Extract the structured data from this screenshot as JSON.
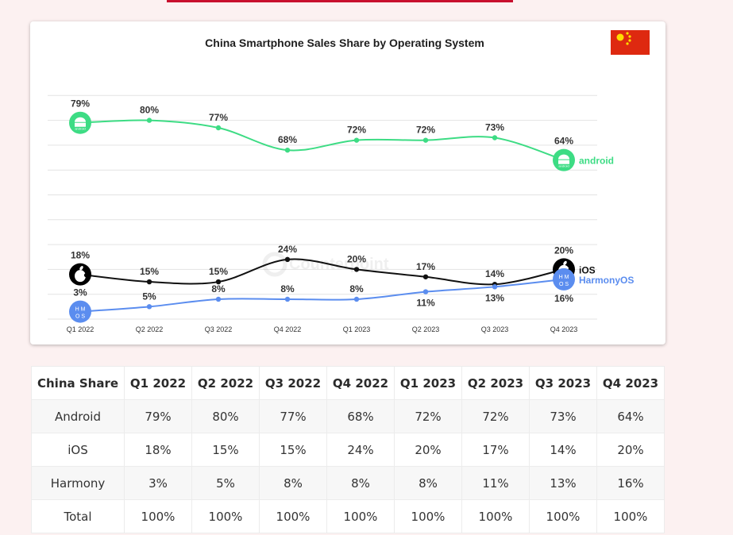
{
  "chart_data": {
    "type": "line",
    "title": "China Smartphone Sales Share by Operating System",
    "categories": [
      "Q1 2022",
      "Q2 2022",
      "Q3 2022",
      "Q4 2022",
      "Q1 2023",
      "Q2 2023",
      "Q3 2023",
      "Q4 2023"
    ],
    "ylim": [
      0,
      100
    ],
    "grid": true,
    "watermark": "Counterpoint",
    "series": [
      {
        "name": "android",
        "color": "#3ddc84",
        "icon": "android-icon",
        "values": [
          79,
          80,
          77,
          68,
          72,
          72,
          73,
          64
        ],
        "labels": [
          "79%",
          "80%",
          "77%",
          "68%",
          "72%",
          "72%",
          "73%",
          "64%"
        ]
      },
      {
        "name": "iOS",
        "color": "#111111",
        "icon": "apple-icon",
        "values": [
          18,
          15,
          15,
          24,
          20,
          17,
          14,
          20
        ],
        "labels": [
          "18%",
          "15%",
          "15%",
          "24%",
          "20%",
          "17%",
          "14%",
          "20%"
        ]
      },
      {
        "name": "HarmonyOS",
        "color": "#5b8def",
        "icon": "hmos-icon",
        "values": [
          3,
          5,
          8,
          8,
          8,
          11,
          13,
          16
        ],
        "labels": [
          "3%",
          "5%",
          "8%",
          "8%",
          "8%",
          "11%",
          "13%",
          "16%"
        ]
      }
    ],
    "flag": "china-flag-icon",
    "icon_text": {
      "android": "android",
      "hmos_line1": "H M",
      "hmos_line2": "O S"
    }
  },
  "table": {
    "headers": [
      "China Share",
      "Q1 2022",
      "Q2 2022",
      "Q3 2022",
      "Q4 2022",
      "Q1 2023",
      "Q2 2023",
      "Q3 2023",
      "Q4 2023"
    ],
    "rows": [
      [
        "Android",
        "79%",
        "80%",
        "77%",
        "68%",
        "72%",
        "72%",
        "73%",
        "64%"
      ],
      [
        "iOS",
        "18%",
        "15%",
        "15%",
        "24%",
        "20%",
        "17%",
        "14%",
        "20%"
      ],
      [
        "Harmony",
        "3%",
        "5%",
        "8%",
        "8%",
        "8%",
        "11%",
        "13%",
        "16%"
      ],
      [
        "Total",
        "100%",
        "100%",
        "100%",
        "100%",
        "100%",
        "100%",
        "100%",
        "100%"
      ]
    ]
  }
}
